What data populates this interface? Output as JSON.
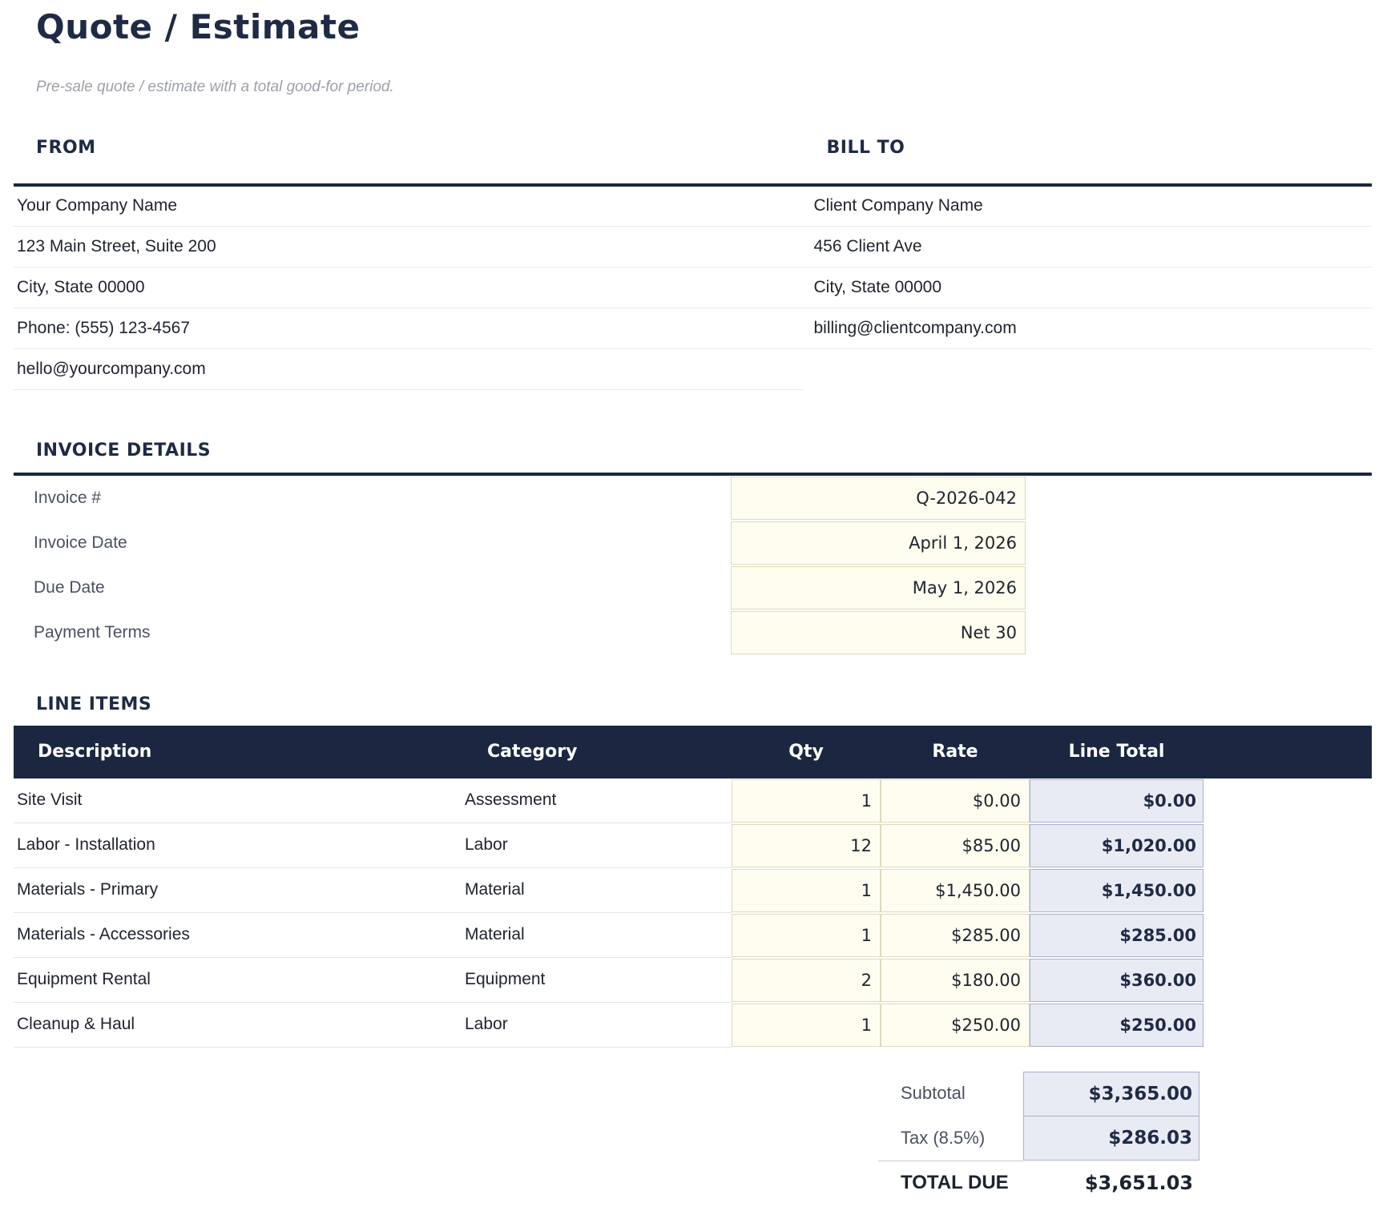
{
  "page": {
    "title": "Quote / Estimate",
    "subtitle": "Pre-sale quote / estimate with a total good-for period."
  },
  "colors": {
    "navy": "#1b2740",
    "input_bg": "#fffdf0",
    "input_border": "#ddd9bc",
    "computed_bg": "#e9ebf4",
    "computed_border": "#a9b1c9"
  },
  "from": {
    "heading": "FROM",
    "lines": [
      "Your Company Name",
      "123 Main Street, Suite 200",
      "City, State 00000",
      "Phone: (555) 123-4567",
      "hello@yourcompany.com"
    ]
  },
  "bill_to": {
    "heading": "BILL TO",
    "lines": [
      "Client Company Name",
      "456 Client Ave",
      "City, State 00000",
      "billing@clientcompany.com"
    ]
  },
  "invoice_details": {
    "heading": "INVOICE DETAILS",
    "rows": [
      {
        "label": "Invoice #",
        "value": "Q-2026-042"
      },
      {
        "label": "Invoice Date",
        "value": "April 1, 2026"
      },
      {
        "label": "Due Date",
        "value": "May 1, 2026"
      },
      {
        "label": "Payment Terms",
        "value": "Net 30"
      }
    ]
  },
  "line_items": {
    "heading": "LINE ITEMS",
    "columns": {
      "description": "Description",
      "category": "Category",
      "qty": "Qty",
      "rate": "Rate",
      "line_total": "Line Total"
    },
    "rows": [
      {
        "description": "Site Visit",
        "category": "Assessment",
        "qty": "1",
        "rate": "$0.00",
        "line_total": "$0.00"
      },
      {
        "description": "Labor - Installation",
        "category": "Labor",
        "qty": "12",
        "rate": "$85.00",
        "line_total": "$1,020.00"
      },
      {
        "description": "Materials - Primary",
        "category": "Material",
        "qty": "1",
        "rate": "$1,450.00",
        "line_total": "$1,450.00"
      },
      {
        "description": "Materials - Accessories",
        "category": "Material",
        "qty": "1",
        "rate": "$285.00",
        "line_total": "$285.00"
      },
      {
        "description": "Equipment Rental",
        "category": "Equipment",
        "qty": "2",
        "rate": "$180.00",
        "line_total": "$360.00"
      },
      {
        "description": "Cleanup & Haul",
        "category": "Labor",
        "qty": "1",
        "rate": "$250.00",
        "line_total": "$250.00"
      }
    ]
  },
  "summary": {
    "subtotal_label": "Subtotal",
    "subtotal_value": "$3,365.00",
    "tax_label": "Tax (8.5%)",
    "tax_value": "$286.03",
    "total_label": "TOTAL DUE",
    "total_value": "$3,651.03"
  }
}
